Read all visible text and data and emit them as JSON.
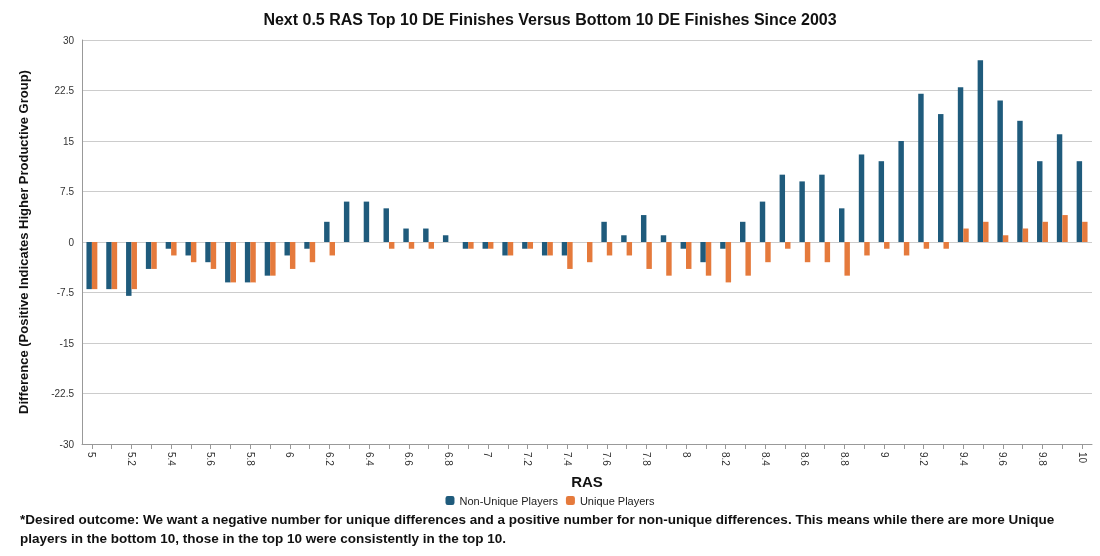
{
  "chart_data": {
    "type": "bar",
    "title": "Next 0.5 RAS Top 10 DE Finishes Versus Bottom 10 DE Finishes Since 2003",
    "xlabel": "RAS",
    "ylabel": "Difference (Positive Indicates Higher Productive Group)",
    "categories": [
      "5",
      null,
      "5.2",
      null,
      "5.4",
      null,
      "5.6",
      null,
      "5.8",
      null,
      "6",
      null,
      "6.2",
      null,
      "6.4",
      null,
      "6.6",
      null,
      "6.8",
      null,
      "7",
      null,
      "7.2",
      null,
      "7.4",
      null,
      "7.6",
      null,
      "7.8",
      null,
      "8",
      null,
      "8.2",
      null,
      "8.4",
      null,
      "8.6",
      null,
      "8.8",
      null,
      "9",
      null,
      "9.2",
      null,
      "9.4",
      null,
      "9.6",
      null,
      "9.8",
      null,
      "10"
    ],
    "series": [
      {
        "name": "Non-Unique Players",
        "color": "#1f5b7c",
        "values": [
          -7,
          -7,
          -8,
          -4,
          -1,
          -2,
          -3,
          -6,
          -6,
          -5,
          -2,
          -1,
          3,
          6,
          6,
          5,
          2,
          2,
          1,
          -1,
          -1,
          -2,
          -1,
          -2,
          -2,
          0,
          3,
          1,
          4,
          1,
          -1,
          -3,
          -1,
          3,
          6,
          10,
          9,
          10,
          5,
          13,
          12,
          15,
          22,
          19,
          23,
          27,
          21,
          18,
          12,
          16,
          12
        ]
      },
      {
        "name": "Unique Players",
        "color": "#e57a3c",
        "values": [
          -7,
          -7,
          -7,
          -4,
          -2,
          -3,
          -4,
          -6,
          -6,
          -5,
          -4,
          -3,
          -2,
          0,
          0,
          -1,
          -1,
          -1,
          0,
          -1,
          -1,
          -2,
          -1,
          -2,
          -4,
          -3,
          -2,
          -2,
          -4,
          -5,
          -4,
          -5,
          -6,
          -5,
          -3,
          -1,
          -3,
          -3,
          -5,
          -2,
          -1,
          -2,
          -1,
          -1,
          2,
          3,
          1,
          2,
          3,
          4,
          3
        ]
      }
    ],
    "ylim": [
      -30,
      30
    ],
    "yticks": [
      -30,
      -22.5,
      -15,
      -7.5,
      0,
      7.5,
      15,
      22.5,
      30
    ],
    "grid": "y",
    "legend": "bottom",
    "annotations": [
      "*Desired outcome: We want a negative number for unique differences and a positive number for non-unique differences. This means while there are more Unique players in the bottom 10, those in the top 10 were consistently in the top 10."
    ]
  }
}
